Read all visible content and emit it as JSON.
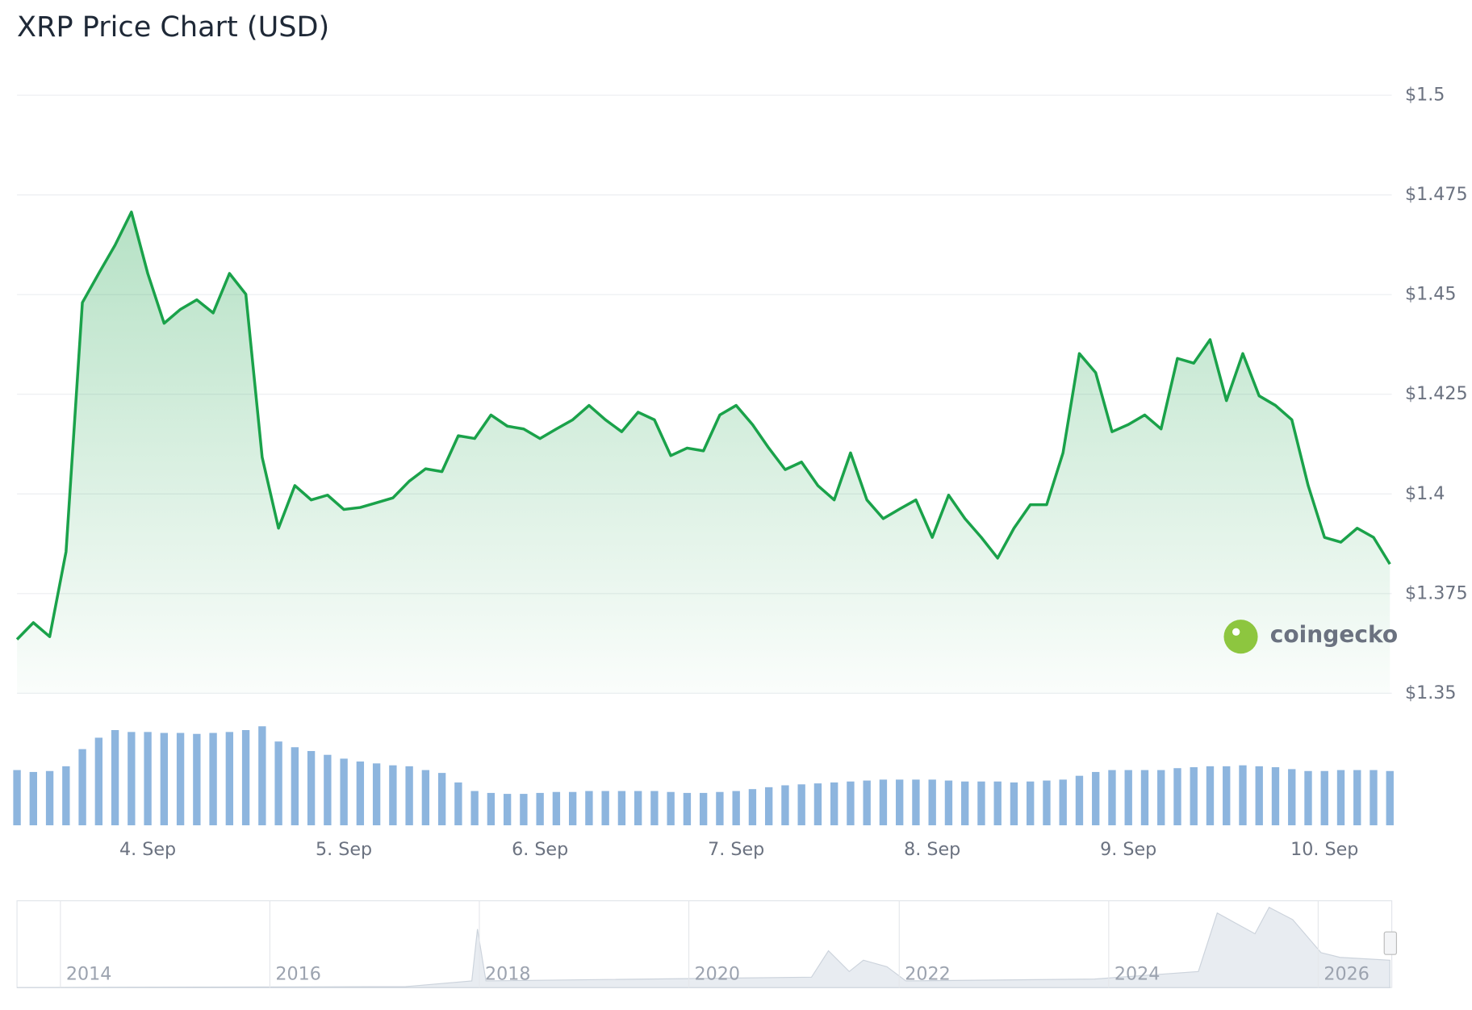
{
  "chart_data": {
    "type": "line",
    "title": "XRP Price Chart (USD)",
    "categories": [
      null,
      null,
      null,
      null,
      null,
      null,
      null,
      null,
      "4. Sep",
      null,
      null,
      null,
      null,
      null,
      null,
      null,
      null,
      null,
      null,
      null,
      "5. Sep",
      null,
      null,
      null,
      null,
      null,
      null,
      null,
      null,
      null,
      null,
      null,
      "6. Sep",
      null,
      null,
      null,
      null,
      null,
      null,
      null,
      null,
      null,
      null,
      null,
      "7. Sep",
      null,
      null,
      null,
      null,
      null,
      null,
      null,
      null,
      null,
      null,
      null,
      "8. Sep",
      null,
      null,
      null,
      null,
      null,
      null,
      null,
      null,
      null,
      null,
      null,
      "9. Sep",
      null,
      null,
      null,
      null,
      null,
      null,
      null,
      null,
      null,
      null,
      null,
      "10. Sep",
      null,
      null,
      null,
      null
    ],
    "series": [
      {
        "color": "#1aa24a",
        "values": [
          1.3635,
          1.3677,
          1.3642,
          1.3855,
          1.448,
          1.4553,
          1.4624,
          1.4707,
          1.4553,
          1.4428,
          1.4463,
          1.4487,
          1.4454,
          1.4553,
          1.4501,
          1.4092,
          1.3914,
          1.4021,
          1.3985,
          1.3997,
          1.3961,
          1.3966,
          1.3978,
          1.399,
          1.4032,
          1.4063,
          1.4056,
          1.4146,
          1.4139,
          1.4198,
          1.417,
          1.4163,
          1.4139,
          1.4163,
          1.4186,
          1.4222,
          1.4186,
          1.4156,
          1.4205,
          1.4186,
          1.4096,
          1.4115,
          1.4108,
          1.4198,
          1.4222,
          1.4174,
          1.4115,
          1.4061,
          1.408,
          1.4021,
          1.3985,
          1.4103,
          1.3985,
          1.3938,
          1.3962,
          1.3985,
          1.3891,
          1.3997,
          1.3938,
          1.3891,
          1.3839,
          1.3914,
          1.3973,
          1.3973,
          1.4103,
          1.4352,
          1.4304,
          1.4156,
          1.4174,
          1.4198,
          1.4163,
          1.434,
          1.4328,
          1.4387,
          1.4234,
          1.4352,
          1.4246,
          1.4222,
          1.4186,
          1.4021,
          1.3891,
          1.3879,
          1.3914,
          1.3891,
          1.3824
        ]
      }
    ],
    "volume": {
      "color": "#8db5de",
      "values": [
        58,
        56,
        57,
        62,
        80,
        92,
        100,
        98,
        98,
        97,
        97,
        96,
        97,
        98,
        100,
        104,
        88,
        82,
        78,
        74,
        70,
        67,
        65,
        63,
        62,
        58,
        55,
        45,
        36,
        34,
        33,
        33,
        34,
        35,
        35,
        36,
        36,
        36,
        36,
        36,
        35,
        34,
        34,
        35,
        36,
        38,
        40,
        42,
        43,
        44,
        45,
        46,
        47,
        48,
        48,
        48,
        48,
        47,
        46,
        46,
        46,
        45,
        46,
        47,
        48,
        52,
        56,
        58,
        58,
        58,
        58,
        60,
        61,
        62,
        62,
        63,
        62,
        61,
        59,
        57,
        57,
        58,
        58,
        58,
        57
      ]
    },
    "ylim": [
      1.35,
      1.5
    ],
    "yticks": [
      {
        "value": 1.35,
        "label": "$1.35"
      },
      {
        "value": 1.375,
        "label": "$1.375"
      },
      {
        "value": 1.4,
        "label": "$1.4"
      },
      {
        "value": 1.425,
        "label": "$1.425"
      },
      {
        "value": 1.45,
        "label": "$1.45"
      },
      {
        "value": 1.475,
        "label": "$1.475"
      },
      {
        "value": 1.5,
        "label": "$1.5"
      }
    ],
    "grid": true,
    "watermark": "coingecko",
    "navigator": {
      "labels": [
        "2014",
        "2016",
        "2018",
        "2020",
        "2022",
        "2024",
        "2026"
      ]
    }
  }
}
